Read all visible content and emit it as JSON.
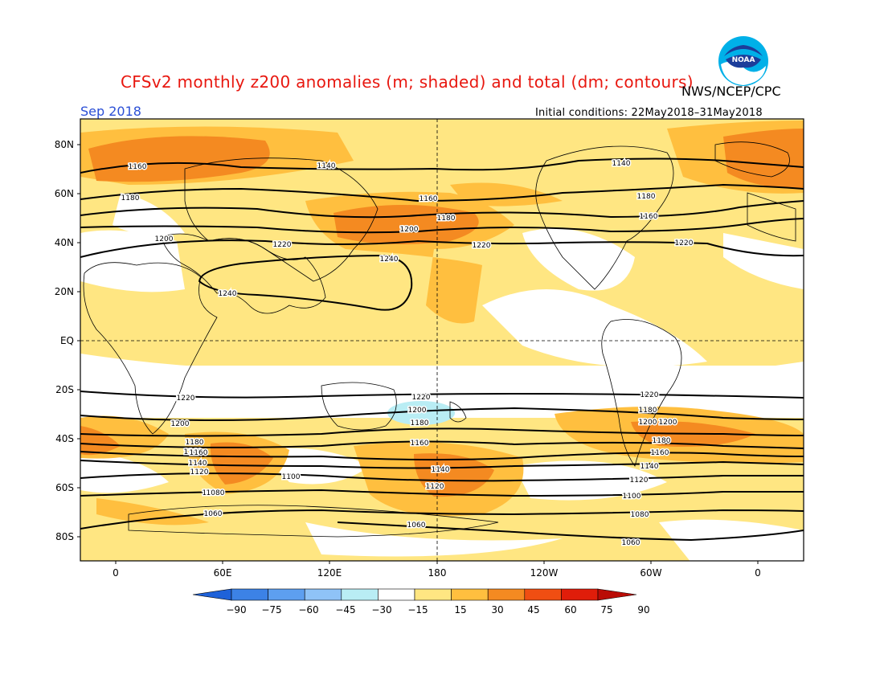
{
  "header": {
    "title": "CFSv2 monthly z200 anomalies (m; shaded) and total (dm; contours)",
    "agency": "NWS/NCEP/CPC",
    "period": "Sep 2018",
    "initial_conditions": "Initial conditions: 22May2018–31May2018",
    "title_color": "#e8170f",
    "period_color": "#2b4fd6"
  },
  "logo": {
    "icon": "noaa-logo-icon",
    "text": "NOAA"
  },
  "axes": {
    "lat_labels": [
      "80N",
      "60N",
      "40N",
      "20N",
      "EQ",
      "20S",
      "40S",
      "60S",
      "80S"
    ],
    "lon_labels": [
      "0",
      "60E",
      "120E",
      "180",
      "120W",
      "60W",
      "0"
    ]
  },
  "contour_labels": [
    "1160",
    "1140",
    "1140",
    "1180",
    "1160",
    "1180",
    "1160",
    "1200",
    "1180",
    "1220",
    "1200",
    "1220",
    "1220",
    "1240",
    "1240",
    "1220",
    "1220",
    "1200",
    "1200",
    "1180",
    "1180",
    "1160",
    "1160",
    "1220",
    "1200",
    "1180",
    "1160",
    "1140",
    "1120",
    "1140",
    "1120",
    "1100",
    "1080",
    "1060",
    "1080",
    "1060",
    "1100",
    "1060",
    "1120",
    "1140",
    "1160",
    "1180",
    "1200",
    "1080"
  ],
  "colorbar": {
    "labels": [
      "−90",
      "−75",
      "−60",
      "−45",
      "−30",
      "−15",
      "15",
      "30",
      "45",
      "60",
      "75",
      "90"
    ],
    "colors": [
      "#1f62d9",
      "#3c82e6",
      "#5d9ff0",
      "#8fc3f7",
      "#b9edf4",
      "#ffffff",
      "#ffe682",
      "#ffbf3f",
      "#f48a21",
      "#f04e12",
      "#e01d0a",
      "#ba0c06"
    ]
  }
}
